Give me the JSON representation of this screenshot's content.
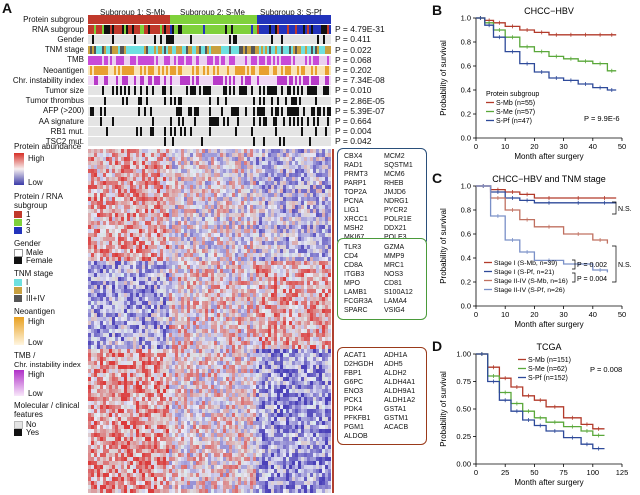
{
  "panels": {
    "A": "A",
    "B": "B",
    "C": "C",
    "D": "D"
  },
  "subgroups": [
    {
      "label": "Subgroup 1: S-Mb",
      "color": "#c0392b"
    },
    {
      "label": "Subgroup 2: S-Me",
      "color": "#7fd13b"
    },
    {
      "label": "Subgroup 3: S-Pf",
      "color": "#2233bb"
    }
  ],
  "tracks": [
    {
      "label": "Protein subgroup",
      "p": ""
    },
    {
      "label": "RNA subgroup",
      "p": "P = 4.79E-31"
    },
    {
      "label": "Gender",
      "p": "P = 0.411"
    },
    {
      "label": "TNM stage",
      "p": "P = 0.022"
    },
    {
      "label": "TMB",
      "p": "P = 0.068"
    },
    {
      "label": "Neoantigen",
      "p": "P = 0.202"
    },
    {
      "label": "Chr. instability index",
      "p": "P = 7.34E-08"
    },
    {
      "label": "Tumor size",
      "p": "P = 0.010"
    },
    {
      "label": "Tumor thrombus",
      "p": "P = 2.86E-05"
    },
    {
      "label": "AFP (>200)",
      "p": "P = 5.39E-07"
    },
    {
      "label": "AA signature",
      "p": "P = 0.664"
    },
    {
      "label": "RB1 mut.",
      "p": "P = 0.004"
    },
    {
      "label": "TSC2 mut.",
      "p": "P = 0.042"
    }
  ],
  "legend": {
    "protein_abundance": "Protein abundance",
    "high": "High",
    "low": "Low",
    "protein_rna": "Protein / RNA",
    "subgroup": "subgroup",
    "s1": "1",
    "s2": "2",
    "s3": "3",
    "gender": "Gender",
    "male": "Male",
    "female": "Female",
    "tnm": "TNM stage",
    "tnm1": "I",
    "tnm2": "II",
    "tnm3": "III+IV",
    "neo": "Neoantigen",
    "neo_high": "High",
    "neo_low": "Low",
    "tmb": "TMB /",
    "cii": "Chr. instability index",
    "tmb_high": "High",
    "tmb_low": "Low",
    "mol": "Molecular / clinical",
    "features": "features",
    "no": "No",
    "yes": "Yes"
  },
  "gene_boxes": [
    {
      "color": "#2a4f7a",
      "col1": [
        "CBX4",
        "RAD1",
        "PRMT3",
        "PARP1",
        "TOP2A",
        "PCNA",
        "LIG1",
        "XRCC1",
        "MSH2",
        "MKI67"
      ],
      "col2": [
        "MCM2",
        "SQSTM1",
        "MCM6",
        "RHEB",
        "JMJD6",
        "NDRG1",
        "PYCR2",
        "POLR1E",
        "DDX21",
        "POLE3"
      ]
    },
    {
      "color": "#4a9a3a",
      "col1": [
        "TLR3",
        "CD4",
        "CD8A",
        "ITGB3",
        "MPO",
        "LAMB1",
        "FCGR3A",
        "SPARC"
      ],
      "col2": [
        "GZMA",
        "MMP9",
        "MRC1",
        "NOS3",
        "CD81",
        "S100A12",
        "LAMA4",
        "VSIG4"
      ]
    },
    {
      "color": "#9a3a1a",
      "col1": [
        "ACAT1",
        "D2HGDH",
        "FBP1",
        "G6PC",
        "ENO3",
        "PCK1",
        "PDK4",
        "PFKFB1",
        "PGM1",
        "ALDOB"
      ],
      "col2": [
        "ADH1A",
        "ADH5",
        "ALDH2",
        "ALDH4A1",
        "ALDH9A1",
        "ALDH1A2",
        "GSTA1",
        "GSTM1",
        "ACACB",
        ""
      ]
    }
  ],
  "km": [
    {
      "title": "CHCC−HBV",
      "xlabel": "Month after surgery",
      "ylabel": "Probability of survival",
      "xticks": [
        "0",
        "10",
        "20",
        "30",
        "40",
        "50"
      ],
      "yticks": [
        "0.0",
        "0.2",
        "0.4",
        "0.6",
        "0.8",
        "1.0"
      ],
      "legend_title": "Protein subgroup",
      "legend": [
        "S-Mb (n=55)",
        "S-Me (n=57)",
        "S-Pf (n=47)"
      ],
      "pval": "P = 9.9E-6"
    },
    {
      "title": "CHCC−HBV and TNM stage",
      "xlabel": "Month after surgery",
      "ylabel": "Probability of survival",
      "xticks": [
        "0",
        "10",
        "20",
        "30",
        "40",
        "50"
      ],
      "yticks": [
        "0.0",
        "0.2",
        "0.4",
        "0.6",
        "0.8",
        "1.0"
      ],
      "legend": [
        "Stage I (S-Mb, n=39)",
        "Stage I (S-Pf, n=21)",
        "Stage II-IV (S-Mb, n=16)",
        "Stage II-IV (S-Pf, n=26)"
      ],
      "ns1": "N.S.",
      "ns2": "N.S.",
      "p1": "P = 0.002",
      "p2": "P = 0.004"
    },
    {
      "title": "TCGA",
      "xlabel": "Month after surgery",
      "ylabel": "Probability of survival",
      "xticks": [
        "0",
        "25",
        "50",
        "75",
        "100",
        "125"
      ],
      "yticks": [
        "0.00",
        "0.25",
        "0.50",
        "0.75",
        "1.00"
      ],
      "legend": [
        "S-Mb (n=151)",
        "S-Me (n=62)",
        "S-Pf (n=152)"
      ],
      "pval": "P = 0.008"
    }
  ],
  "chart_data": [
    {
      "type": "line",
      "title": "CHCC−HBV",
      "xlabel": "Month after surgery",
      "ylabel": "Probability of survival",
      "xlim": [
        0,
        50
      ],
      "ylim": [
        0,
        1
      ],
      "series": [
        {
          "name": "S-Mb (n=55)",
          "color": "#b23a2a",
          "x": [
            0,
            3,
            6,
            10,
            15,
            20,
            25,
            30,
            35,
            40,
            45,
            48
          ],
          "y": [
            1,
            0.98,
            0.96,
            0.93,
            0.9,
            0.88,
            0.86,
            0.86,
            0.86,
            0.86,
            0.86,
            0.86
          ]
        },
        {
          "name": "S-Me (n=57)",
          "color": "#5aa83a",
          "x": [
            0,
            3,
            6,
            10,
            15,
            20,
            25,
            30,
            35,
            40,
            45,
            48
          ],
          "y": [
            1,
            0.96,
            0.9,
            0.84,
            0.76,
            0.72,
            0.68,
            0.66,
            0.64,
            0.62,
            0.56,
            0.56
          ]
        },
        {
          "name": "S-Pf (n=47)",
          "color": "#2e4a9a",
          "x": [
            0,
            3,
            6,
            10,
            15,
            20,
            25,
            30,
            35,
            40,
            45,
            48
          ],
          "y": [
            1,
            0.94,
            0.84,
            0.72,
            0.62,
            0.55,
            0.5,
            0.48,
            0.45,
            0.42,
            0.4,
            0.4
          ]
        }
      ]
    },
    {
      "type": "line",
      "title": "CHCC−HBV and TNM stage",
      "xlabel": "Month after surgery",
      "ylabel": "Probability of survival",
      "xlim": [
        0,
        50
      ],
      "ylim": [
        0,
        1
      ],
      "series": [
        {
          "name": "Stage I (S-Mb, n=39)",
          "color": "#b23a2a",
          "x": [
            0,
            5,
            10,
            15,
            20,
            30,
            40,
            48
          ],
          "y": [
            1,
            0.97,
            0.95,
            0.93,
            0.9,
            0.9,
            0.9,
            0.9
          ]
        },
        {
          "name": "Stage I (S-Pf, n=21)",
          "color": "#2e4a9a",
          "x": [
            0,
            5,
            10,
            15,
            20,
            30,
            40,
            48
          ],
          "y": [
            1,
            0.95,
            0.9,
            0.88,
            0.86,
            0.86,
            0.86,
            0.86
          ]
        },
        {
          "name": "Stage II-IV (S-Mb, n=16)",
          "color": "#c07060",
          "x": [
            0,
            5,
            10,
            15,
            20,
            30,
            40,
            45
          ],
          "y": [
            1,
            0.9,
            0.8,
            0.72,
            0.66,
            0.6,
            0.55,
            0.52
          ]
        },
        {
          "name": "Stage II-IV (S-Pf, n=26)",
          "color": "#7a90c8",
          "x": [
            0,
            5,
            10,
            15,
            20,
            30,
            40,
            45
          ],
          "y": [
            1,
            0.75,
            0.55,
            0.45,
            0.38,
            0.35,
            0.3,
            0.28
          ]
        }
      ]
    },
    {
      "type": "line",
      "title": "TCGA",
      "xlabel": "Month after surgery",
      "ylabel": "Probability of survival",
      "xlim": [
        0,
        125
      ],
      "ylim": [
        0,
        1
      ],
      "series": [
        {
          "name": "S-Mb (n=151)",
          "color": "#b23a2a",
          "x": [
            0,
            10,
            20,
            30,
            40,
            50,
            60,
            75,
            90,
            100,
            110
          ],
          "y": [
            1,
            0.88,
            0.78,
            0.7,
            0.62,
            0.58,
            0.52,
            0.42,
            0.36,
            0.32,
            0.32
          ]
        },
        {
          "name": "S-Me (n=62)",
          "color": "#5aa83a",
          "x": [
            0,
            10,
            20,
            30,
            40,
            50,
            60,
            75,
            90,
            100,
            110
          ],
          "y": [
            1,
            0.8,
            0.65,
            0.55,
            0.48,
            0.42,
            0.38,
            0.34,
            0.3,
            0.26,
            0.26
          ]
        },
        {
          "name": "S-Pf (n=152)",
          "color": "#2e4a9a",
          "x": [
            0,
            10,
            20,
            30,
            40,
            50,
            60,
            75,
            90,
            100,
            110
          ],
          "y": [
            1,
            0.75,
            0.58,
            0.48,
            0.4,
            0.35,
            0.3,
            0.24,
            0.18,
            0.14,
            0.14
          ]
        }
      ]
    }
  ]
}
